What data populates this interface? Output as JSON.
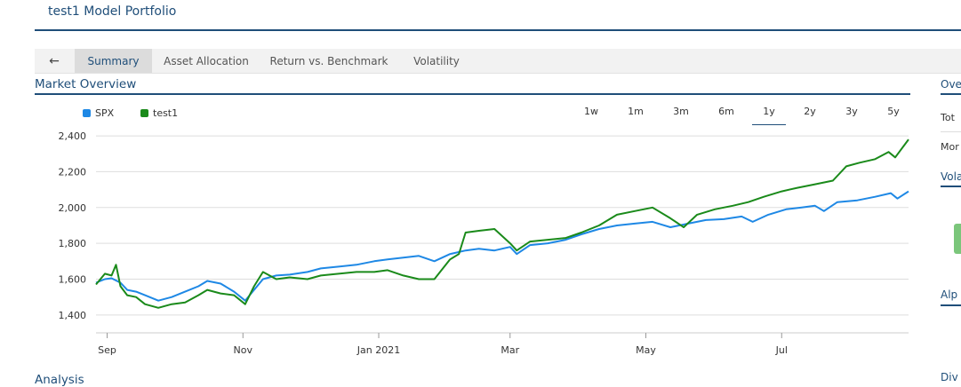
{
  "page": {
    "title": "test1 Model Portfolio"
  },
  "tabs": {
    "back_icon": "arrow-left-icon",
    "back_glyph": "←",
    "items": [
      {
        "label": "Summary",
        "active": true
      },
      {
        "label": "Asset Allocation",
        "active": false
      },
      {
        "label": "Return vs. Benchmark",
        "active": false
      },
      {
        "label": "Volatility",
        "active": false
      }
    ]
  },
  "market_overview": {
    "title": "Market Overview",
    "legend": [
      {
        "label": "SPX",
        "color": "#1e88e5"
      },
      {
        "label": "test1",
        "color": "#1a8a1a"
      }
    ],
    "ranges": [
      "1w",
      "1m",
      "3m",
      "6m",
      "1y",
      "2y",
      "3y",
      "5y"
    ],
    "selected_range": "1y"
  },
  "right_panel": {
    "overview_title": "Ove",
    "row1": "Tot",
    "row2": "Mor",
    "volatility_title": "Vola",
    "alpha_title": "Alp",
    "dividend_title": "Div"
  },
  "analysis": {
    "title": "Analysis"
  },
  "chart_data": {
    "type": "line",
    "ylim": [
      1300,
      2450
    ],
    "yticks": [
      1400,
      1600,
      1800,
      2000,
      2200,
      2400
    ],
    "ytick_labels": [
      "1,400",
      "1,600",
      "1,800",
      "2,000",
      "2,200",
      "2,400"
    ],
    "x_domain": [
      "2020-08-27",
      "2021-08-27"
    ],
    "xticks": [
      {
        "label": "Sep",
        "date": "2020-09-01"
      },
      {
        "label": "Nov",
        "date": "2020-11-01"
      },
      {
        "label": "Jan 2021",
        "date": "2021-01-01"
      },
      {
        "label": "Mar",
        "date": "2021-03-01"
      },
      {
        "label": "May",
        "date": "2021-05-01"
      },
      {
        "label": "Jul",
        "date": "2021-07-01"
      }
    ],
    "grid": true,
    "series": [
      {
        "name": "SPX",
        "color": "#1e88e5",
        "points": [
          [
            "2020-08-27",
            1580
          ],
          [
            "2020-08-31",
            1600
          ],
          [
            "2020-09-03",
            1605
          ],
          [
            "2020-09-07",
            1580
          ],
          [
            "2020-09-10",
            1540
          ],
          [
            "2020-09-14",
            1530
          ],
          [
            "2020-09-18",
            1510
          ],
          [
            "2020-09-24",
            1480
          ],
          [
            "2020-09-30",
            1500
          ],
          [
            "2020-10-06",
            1530
          ],
          [
            "2020-10-12",
            1560
          ],
          [
            "2020-10-16",
            1590
          ],
          [
            "2020-10-22",
            1575
          ],
          [
            "2020-10-28",
            1530
          ],
          [
            "2020-11-02",
            1480
          ],
          [
            "2020-11-06",
            1540
          ],
          [
            "2020-11-10",
            1600
          ],
          [
            "2020-11-16",
            1620
          ],
          [
            "2020-11-22",
            1625
          ],
          [
            "2020-11-30",
            1640
          ],
          [
            "2020-12-06",
            1660
          ],
          [
            "2020-12-14",
            1670
          ],
          [
            "2020-12-22",
            1680
          ],
          [
            "2020-12-30",
            1700
          ],
          [
            "2021-01-05",
            1710
          ],
          [
            "2021-01-12",
            1720
          ],
          [
            "2021-01-19",
            1730
          ],
          [
            "2021-01-26",
            1700
          ],
          [
            "2021-02-02",
            1740
          ],
          [
            "2021-02-09",
            1760
          ],
          [
            "2021-02-15",
            1770
          ],
          [
            "2021-02-22",
            1760
          ],
          [
            "2021-03-01",
            1780
          ],
          [
            "2021-03-04",
            1740
          ],
          [
            "2021-03-10",
            1790
          ],
          [
            "2021-03-18",
            1800
          ],
          [
            "2021-03-26",
            1820
          ],
          [
            "2021-04-02",
            1850
          ],
          [
            "2021-04-10",
            1880
          ],
          [
            "2021-04-18",
            1900
          ],
          [
            "2021-04-26",
            1910
          ],
          [
            "2021-05-04",
            1920
          ],
          [
            "2021-05-12",
            1890
          ],
          [
            "2021-05-20",
            1910
          ],
          [
            "2021-05-28",
            1930
          ],
          [
            "2021-06-05",
            1935
          ],
          [
            "2021-06-13",
            1950
          ],
          [
            "2021-06-18",
            1920
          ],
          [
            "2021-06-25",
            1960
          ],
          [
            "2021-07-03",
            1990
          ],
          [
            "2021-07-10",
            2000
          ],
          [
            "2021-07-16",
            2010
          ],
          [
            "2021-07-20",
            1980
          ],
          [
            "2021-07-26",
            2030
          ],
          [
            "2021-08-04",
            2040
          ],
          [
            "2021-08-12",
            2060
          ],
          [
            "2021-08-19",
            2080
          ],
          [
            "2021-08-22",
            2050
          ],
          [
            "2021-08-27",
            2090
          ]
        ]
      },
      {
        "name": "test1",
        "color": "#1a8a1a",
        "points": [
          [
            "2020-08-27",
            1570
          ],
          [
            "2020-08-31",
            1630
          ],
          [
            "2020-09-03",
            1620
          ],
          [
            "2020-09-05",
            1680
          ],
          [
            "2020-09-07",
            1560
          ],
          [
            "2020-09-10",
            1510
          ],
          [
            "2020-09-14",
            1500
          ],
          [
            "2020-09-18",
            1460
          ],
          [
            "2020-09-24",
            1440
          ],
          [
            "2020-09-30",
            1460
          ],
          [
            "2020-10-06",
            1470
          ],
          [
            "2020-10-12",
            1510
          ],
          [
            "2020-10-16",
            1540
          ],
          [
            "2020-10-22",
            1520
          ],
          [
            "2020-10-28",
            1510
          ],
          [
            "2020-11-02",
            1460
          ],
          [
            "2020-11-06",
            1560
          ],
          [
            "2020-11-10",
            1640
          ],
          [
            "2020-11-16",
            1600
          ],
          [
            "2020-11-22",
            1610
          ],
          [
            "2020-11-30",
            1600
          ],
          [
            "2020-12-06",
            1620
          ],
          [
            "2020-12-14",
            1630
          ],
          [
            "2020-12-22",
            1640
          ],
          [
            "2020-12-30",
            1640
          ],
          [
            "2021-01-05",
            1650
          ],
          [
            "2021-01-12",
            1620
          ],
          [
            "2021-01-19",
            1600
          ],
          [
            "2021-01-26",
            1600
          ],
          [
            "2021-02-02",
            1710
          ],
          [
            "2021-02-06",
            1740
          ],
          [
            "2021-02-09",
            1860
          ],
          [
            "2021-02-15",
            1870
          ],
          [
            "2021-02-22",
            1880
          ],
          [
            "2021-03-01",
            1800
          ],
          [
            "2021-03-04",
            1760
          ],
          [
            "2021-03-10",
            1810
          ],
          [
            "2021-03-18",
            1820
          ],
          [
            "2021-03-26",
            1830
          ],
          [
            "2021-04-02",
            1860
          ],
          [
            "2021-04-10",
            1900
          ],
          [
            "2021-04-18",
            1960
          ],
          [
            "2021-04-26",
            1980
          ],
          [
            "2021-05-04",
            2000
          ],
          [
            "2021-05-12",
            1940
          ],
          [
            "2021-05-18",
            1890
          ],
          [
            "2021-05-24",
            1960
          ],
          [
            "2021-06-01",
            1990
          ],
          [
            "2021-06-09",
            2010
          ],
          [
            "2021-06-16",
            2030
          ],
          [
            "2021-06-23",
            2060
          ],
          [
            "2021-07-01",
            2090
          ],
          [
            "2021-07-08",
            2110
          ],
          [
            "2021-07-16",
            2130
          ],
          [
            "2021-07-24",
            2150
          ],
          [
            "2021-07-30",
            2230
          ],
          [
            "2021-08-05",
            2250
          ],
          [
            "2021-08-12",
            2270
          ],
          [
            "2021-08-18",
            2310
          ],
          [
            "2021-08-21",
            2280
          ],
          [
            "2021-08-27",
            2380
          ]
        ]
      }
    ]
  }
}
